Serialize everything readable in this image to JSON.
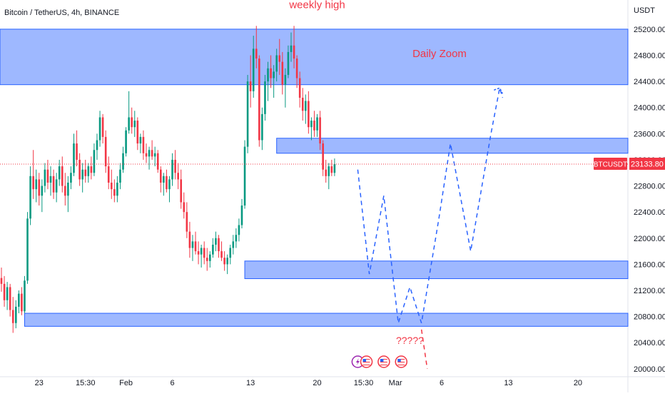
{
  "header": {
    "symbol_line": "Bitcoin / TetherUS, 4h, BINANCE",
    "currency": "USDT"
  },
  "chart_data": {
    "type": "candlestick",
    "symbol": "BTCUSDT",
    "interval": "4h",
    "exchange": "BINANCE",
    "currency": "USDT",
    "y_axis": {
      "min": 19900,
      "max": 25450,
      "ticks": [
        20000,
        20400,
        20800,
        21200,
        21600,
        22000,
        22400,
        22800,
        23200,
        23600,
        24000,
        24400,
        24800,
        25200
      ]
    },
    "x_ticks": [
      {
        "label": "23",
        "bar": 13
      },
      {
        "label": "15:30",
        "bar": 29
      },
      {
        "label": "Feb",
        "bar": 43
      },
      {
        "label": "6",
        "bar": 59
      },
      {
        "label": "13",
        "bar": 86
      },
      {
        "label": "20",
        "bar": 109
      },
      {
        "label": "15:30",
        "bar": 125
      },
      {
        "label": "Mar",
        "bar": 136
      },
      {
        "label": "6",
        "bar": 152
      },
      {
        "label": "13",
        "bar": 175
      },
      {
        "label": "20",
        "bar": 199
      }
    ],
    "last_price": {
      "symbol_label": "BTCUSDT",
      "value_label": "23133.80",
      "value": 23133.8,
      "color": "#f23645"
    },
    "up_color": "#089981",
    "down_color": "#f23645",
    "ohlc": [
      [
        21390,
        21550,
        21180,
        21300
      ],
      [
        21300,
        21420,
        20950,
        21050
      ],
      [
        21050,
        21330,
        20900,
        21250
      ],
      [
        21250,
        21300,
        20800,
        20900
      ],
      [
        20900,
        21100,
        20550,
        20700
      ],
      [
        20700,
        21050,
        20620,
        20950
      ],
      [
        20950,
        21200,
        20850,
        21150
      ],
      [
        21150,
        21250,
        20820,
        20880
      ],
      [
        20880,
        21420,
        20850,
        21350
      ],
      [
        21350,
        22400,
        21300,
        22300
      ],
      [
        22300,
        23100,
        22200,
        22950
      ],
      [
        22950,
        23350,
        22600,
        22750
      ],
      [
        22750,
        23050,
        22550,
        22900
      ],
      [
        22900,
        23000,
        22500,
        22650
      ],
      [
        22650,
        22900,
        22400,
        22800
      ],
      [
        22800,
        23150,
        22700,
        23050
      ],
      [
        23050,
        23200,
        22750,
        22850
      ],
      [
        22850,
        23100,
        22650,
        22950
      ],
      [
        22950,
        23050,
        22600,
        22700
      ],
      [
        22700,
        23000,
        22550,
        22900
      ],
      [
        22900,
        23200,
        22800,
        23100
      ],
      [
        23100,
        23250,
        22700,
        22800
      ],
      [
        22800,
        23000,
        22500,
        22650
      ],
      [
        22650,
        22950,
        22400,
        22850
      ],
      [
        22850,
        23100,
        22750,
        23000
      ],
      [
        23000,
        23600,
        22950,
        23450
      ],
      [
        23450,
        23650,
        23100,
        23200
      ],
      [
        23200,
        23300,
        22800,
        22900
      ],
      [
        22900,
        23150,
        22700,
        23050
      ],
      [
        23050,
        23200,
        22850,
        22950
      ],
      [
        22950,
        23150,
        22850,
        23100
      ],
      [
        23100,
        23250,
        22900,
        23000
      ],
      [
        23000,
        23450,
        22950,
        23350
      ],
      [
        23350,
        23600,
        23200,
        23500
      ],
      [
        23500,
        23950,
        23400,
        23850
      ],
      [
        23850,
        23900,
        23450,
        23550
      ],
      [
        23550,
        23650,
        23000,
        23100
      ],
      [
        23100,
        23250,
        22750,
        22850
      ],
      [
        22850,
        23050,
        22600,
        22750
      ],
      [
        22750,
        22900,
        22550,
        22650
      ],
      [
        22650,
        22950,
        22550,
        22850
      ],
      [
        22850,
        23150,
        22750,
        23050
      ],
      [
        23050,
        23400,
        23000,
        23300
      ],
      [
        23300,
        23700,
        23250,
        23650
      ],
      [
        23650,
        24250,
        23600,
        23850
      ],
      [
        23850,
        24000,
        23600,
        23700
      ],
      [
        23700,
        23950,
        23550,
        23800
      ],
      [
        23800,
        23850,
        23350,
        23450
      ],
      [
        23450,
        23600,
        23300,
        23550
      ],
      [
        23550,
        23650,
        23200,
        23300
      ],
      [
        23300,
        23450,
        23150,
        23250
      ],
      [
        23250,
        23400,
        23050,
        23350
      ],
      [
        23350,
        23500,
        23200,
        23250
      ],
      [
        23250,
        23400,
        23100,
        23300
      ],
      [
        23300,
        23350,
        23000,
        23050
      ],
      [
        23050,
        23100,
        22700,
        22850
      ],
      [
        22850,
        23000,
        22650,
        22950
      ],
      [
        22950,
        23050,
        22700,
        22750
      ],
      [
        22750,
        22950,
        22550,
        22900
      ],
      [
        22900,
        23300,
        22800,
        23200
      ],
      [
        23200,
        23350,
        22900,
        23000
      ],
      [
        23000,
        23150,
        22750,
        22900
      ],
      [
        22900,
        23050,
        22450,
        22550
      ],
      [
        22550,
        22700,
        22300,
        22400
      ],
      [
        22400,
        22550,
        22000,
        22100
      ],
      [
        22100,
        22250,
        21700,
        21850
      ],
      [
        21850,
        22050,
        21650,
        21950
      ],
      [
        21950,
        22100,
        21750,
        21800
      ],
      [
        21800,
        21950,
        21600,
        21750
      ],
      [
        21750,
        21900,
        21550,
        21850
      ],
      [
        21850,
        21950,
        21600,
        21700
      ],
      [
        21700,
        21850,
        21500,
        21650
      ],
      [
        21650,
        21800,
        21550,
        21750
      ],
      [
        21750,
        22000,
        21700,
        21900
      ],
      [
        21900,
        22100,
        21800,
        22000
      ],
      [
        22000,
        22050,
        21700,
        21800
      ],
      [
        21800,
        21950,
        21650,
        21700
      ],
      [
        21700,
        21800,
        21500,
        21600
      ],
      [
        21600,
        21750,
        21450,
        21700
      ],
      [
        21700,
        21900,
        21600,
        21850
      ],
      [
        21850,
        22050,
        21750,
        21950
      ],
      [
        21950,
        22150,
        21850,
        22050
      ],
      [
        22050,
        22300,
        21950,
        22200
      ],
      [
        22200,
        22600,
        22150,
        22500
      ],
      [
        22500,
        23500,
        22450,
        23400
      ],
      [
        23400,
        24500,
        23300,
        24400
      ],
      [
        24400,
        24800,
        24000,
        24250
      ],
      [
        24250,
        25100,
        24150,
        24900
      ],
      [
        24900,
        25250,
        24600,
        24750
      ],
      [
        24750,
        24800,
        23400,
        23500
      ],
      [
        23500,
        24000,
        23350,
        23900
      ],
      [
        23900,
        24500,
        23800,
        24400
      ],
      [
        24400,
        24700,
        24100,
        24600
      ],
      [
        24600,
        24800,
        24300,
        24450
      ],
      [
        24450,
        24650,
        24150,
        24550
      ],
      [
        24550,
        24900,
        24400,
        24800
      ],
      [
        24800,
        25050,
        24500,
        24700
      ],
      [
        24700,
        24850,
        24200,
        24350
      ],
      [
        24350,
        24600,
        24000,
        24500
      ],
      [
        24500,
        24950,
        24450,
        24850
      ],
      [
        24850,
        25150,
        24700,
        24950
      ],
      [
        24950,
        25250,
        24600,
        24750
      ],
      [
        24750,
        24800,
        24300,
        24450
      ],
      [
        24450,
        24550,
        24000,
        24150
      ],
      [
        24150,
        24300,
        23800,
        23950
      ],
      [
        23950,
        24200,
        23750,
        24100
      ],
      [
        24100,
        24250,
        23600,
        23700
      ],
      [
        23700,
        23850,
        23500,
        23800
      ],
      [
        23800,
        23950,
        23550,
        23650
      ],
      [
        23650,
        23900,
        23550,
        23850
      ],
      [
        23850,
        23950,
        23350,
        23450
      ],
      [
        23450,
        23500,
        22950,
        23050
      ],
      [
        23050,
        23200,
        22850,
        22950
      ],
      [
        22950,
        23150,
        22750,
        23100
      ],
      [
        23100,
        23200,
        22950,
        23000
      ],
      [
        23000,
        23220,
        22950,
        23133.8
      ]
    ],
    "zones": [
      {
        "name": "weekly-high-zone",
        "top": 25200,
        "bottom": 24350,
        "bar_start": -1,
        "bar_end": 219,
        "color": "#2962ff",
        "label": "Daily Zoom"
      },
      {
        "name": "resistance-zone",
        "top": 23530,
        "bottom": 23300,
        "bar_start": 95,
        "bar_end": 219,
        "color": "#2962ff"
      },
      {
        "name": "support-zone",
        "top": 21650,
        "bottom": 21380,
        "bar_start": 84,
        "bar_end": 219,
        "color": "#2962ff"
      },
      {
        "name": "low-zone",
        "top": 20850,
        "bottom": 20650,
        "bar_start": 8,
        "bar_end": 219,
        "color": "#2962ff"
      }
    ],
    "projection_paths": [
      {
        "name": "projection-path-main",
        "color": "#2962ff",
        "points": [
          [
            123,
            23050
          ],
          [
            127,
            21450
          ],
          [
            132,
            22650
          ],
          [
            137,
            20700
          ],
          [
            141,
            21250
          ],
          [
            145,
            20700
          ],
          [
            151,
            22300
          ],
          [
            155,
            23450
          ],
          [
            162,
            21800
          ],
          [
            169,
            23600
          ],
          [
            172,
            24300
          ],
          [
            173,
            24150
          ]
        ]
      },
      {
        "name": "projection-path-down",
        "color": "#f23645",
        "points": [
          [
            145,
            20600
          ],
          [
            147,
            20000
          ]
        ]
      }
    ],
    "annotations": [
      {
        "text": "weekly high",
        "color": "#f23645",
        "bar": 109,
        "value": 25520
      },
      {
        "text": "?????",
        "color": "#f23645",
        "bar": 141,
        "value": 20380
      }
    ],
    "events": [
      {
        "name": "event-icon-earnings",
        "kind": "purple",
        "bar": 123
      },
      {
        "name": "event-icon-flag-1",
        "kind": "flag",
        "bar": 126
      },
      {
        "name": "event-icon-flag-2",
        "kind": "flag",
        "bar": 132
      },
      {
        "name": "event-icon-flag-3",
        "kind": "flag",
        "bar": 138
      }
    ]
  }
}
